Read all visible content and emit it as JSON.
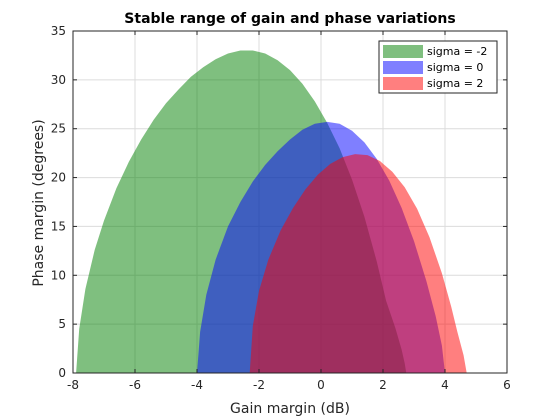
{
  "chart_data": {
    "type": "area",
    "title": "Stable range of gain and phase variations",
    "xlabel": "Gain margin (dB)",
    "ylabel": "Phase margin (degrees)",
    "xlim": [
      -8,
      6
    ],
    "ylim": [
      0,
      35
    ],
    "xticks": [
      -8,
      -6,
      -4,
      -2,
      0,
      2,
      4,
      6
    ],
    "yticks": [
      0,
      5,
      10,
      15,
      20,
      25,
      30,
      35
    ],
    "grid": true,
    "legend_position": "top-right",
    "series": [
      {
        "name": "sigma = -2",
        "color": "#00800080",
        "fill": "#008000",
        "x": [
          -7.9,
          -7.8,
          -7.6,
          -7.3,
          -7.0,
          -6.6,
          -6.2,
          -5.8,
          -5.4,
          -5.0,
          -4.6,
          -4.2,
          -3.8,
          -3.4,
          -3.0,
          -2.6,
          -2.2,
          -1.8,
          -1.4,
          -1.0,
          -0.6,
          -0.2,
          0.2,
          0.6,
          1.0,
          1.4,
          1.8,
          2.1,
          2.4,
          2.6,
          2.7,
          2.75
        ],
        "y": [
          0,
          4.5,
          8.6,
          12.6,
          15.6,
          18.9,
          21.6,
          23.9,
          25.9,
          27.6,
          29.0,
          30.3,
          31.3,
          32.1,
          32.7,
          33.0,
          33.0,
          32.7,
          32.0,
          31.0,
          29.6,
          27.8,
          25.6,
          23.0,
          19.8,
          16.0,
          11.4,
          7.4,
          4.6,
          2.4,
          1.0,
          0
        ]
      },
      {
        "name": "sigma = 0",
        "color": "#0000ff",
        "fill": "#0000ff",
        "x": [
          -4.0,
          -3.9,
          -3.7,
          -3.4,
          -3.0,
          -2.6,
          -2.2,
          -1.8,
          -1.4,
          -1.0,
          -0.6,
          -0.2,
          0.2,
          0.6,
          1.0,
          1.4,
          1.8,
          2.2,
          2.6,
          3.0,
          3.4,
          3.7,
          3.9,
          4.0
        ],
        "y": [
          0,
          4.2,
          8.0,
          11.6,
          15.0,
          17.5,
          19.6,
          21.3,
          22.7,
          23.9,
          24.9,
          25.5,
          25.7,
          25.5,
          24.8,
          23.6,
          21.9,
          19.7,
          16.9,
          13.5,
          9.4,
          5.8,
          2.8,
          0
        ]
      },
      {
        "name": "sigma = 2",
        "color": "#ff0000",
        "fill": "#ff0000",
        "x": [
          -2.3,
          -2.2,
          -2.0,
          -1.7,
          -1.3,
          -0.9,
          -0.5,
          -0.1,
          0.3,
          0.7,
          1.1,
          1.5,
          1.9,
          2.3,
          2.7,
          3.1,
          3.5,
          3.9,
          4.2,
          4.4,
          4.6,
          4.7
        ],
        "y": [
          0,
          4.8,
          8.4,
          11.6,
          14.6,
          16.9,
          18.8,
          20.3,
          21.4,
          22.1,
          22.4,
          22.3,
          21.7,
          20.6,
          19.0,
          16.8,
          13.9,
          10.2,
          6.8,
          4.2,
          1.8,
          0
        ]
      }
    ]
  }
}
